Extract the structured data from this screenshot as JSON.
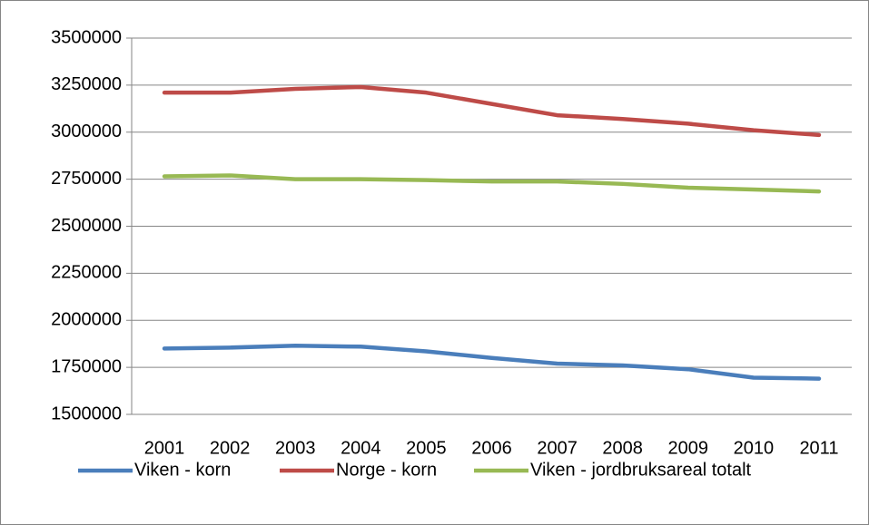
{
  "chart_data": {
    "type": "line",
    "categories": [
      "2001",
      "2002",
      "2003",
      "2004",
      "2005",
      "2006",
      "2007",
      "2008",
      "2009",
      "2010",
      "2011"
    ],
    "series": [
      {
        "name": "Viken - korn",
        "color": "#4a7ebb",
        "values": [
          1850000,
          1855000,
          1865000,
          1860000,
          1835000,
          1800000,
          1770000,
          1760000,
          1740000,
          1695000,
          1690000
        ]
      },
      {
        "name": "Norge - korn",
        "color": "#be4b48",
        "values": [
          3210000,
          3210000,
          3230000,
          3240000,
          3210000,
          3150000,
          3090000,
          3070000,
          3045000,
          3010000,
          2985000
        ]
      },
      {
        "name": "Viken - jordbruksareal totalt",
        "color": "#98b954",
        "values": [
          2765000,
          2770000,
          2750000,
          2750000,
          2745000,
          2738000,
          2738000,
          2725000,
          2705000,
          2695000,
          2685000
        ]
      }
    ],
    "ylim": [
      1500000,
      3500000
    ],
    "yticks": [
      1500000,
      1750000,
      2000000,
      2250000,
      2500000,
      2750000,
      3000000,
      3250000,
      3500000
    ],
    "grid": true,
    "legend": "bottom"
  }
}
